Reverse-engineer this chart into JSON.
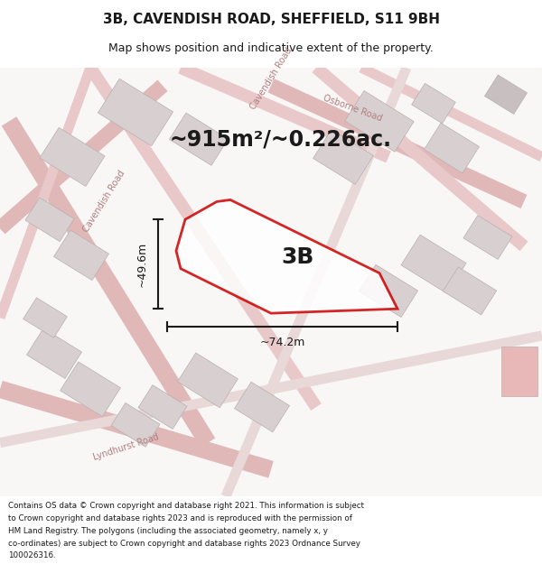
{
  "title_line1": "3B, CAVENDISH ROAD, SHEFFIELD, S11 9BH",
  "title_line2": "Map shows position and indicative extent of the property.",
  "area_text": "~915m²/~0.226ac.",
  "label_3b": "3B",
  "dim_width": "~74.2m",
  "dim_height": "~49.6m",
  "footer_text": "Contains OS data © Crown copyright and database right 2021. This information is subject to Crown copyright and database rights 2023 and is reproduced with the permission of HM Land Registry. The polygons (including the associated geometry, namely x, y co-ordinates) are subject to Crown copyright and database rights 2023 Ordnance Survey 100026316.",
  "bg_color": "#f5f0f0",
  "map_bg": "#f9f6f6",
  "road_color": "#e8b8b8",
  "building_color": "#d8d0d0",
  "plot_outline_color": "#cc0000",
  "plot_fill_color": "#ffffff",
  "dim_line_color": "#1a1a1a",
  "road_label_color": "#b08080",
  "fig_width": 6.0,
  "fig_height": 6.25,
  "map_region": [
    0.0,
    0.07,
    1.0,
    0.85
  ]
}
